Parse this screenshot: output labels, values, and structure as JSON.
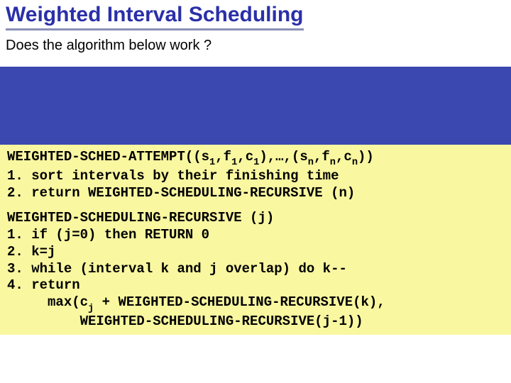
{
  "colors": {
    "header_bg": "#ffffff",
    "title_text": "#2a2fa8",
    "title_underline": "#8a8fb5",
    "subtitle_text": "#000000",
    "mid_bg": "#3a48b0",
    "code_bg": "#f9f7a0",
    "code_text": "#000000"
  },
  "text": {
    "title": "Weighted Interval Scheduling",
    "subtitle": "Does the algorithm below work ?"
  },
  "code": {
    "block1": {
      "l1a": "WEIGHTED-SCHED-ATTEMPT((s",
      "l1b": ",f",
      "l1c": ",c",
      "l1d": "),…,(s",
      "l1e": ",f",
      "l1f": ",c",
      "l1g": "))",
      "sub_1a": "1",
      "sub_1b": "1",
      "sub_1c": "1",
      "sub_na": "n",
      "sub_nb": "n",
      "sub_nc": "n",
      "l2": "1. sort intervals by their finishing time",
      "l3": "2. return WEIGHTED-SCHEDULING-RECURSIVE (n)"
    },
    "block2": {
      "l1": "WEIGHTED-SCHEDULING-RECURSIVE (j)",
      "l2": "1. if (j=0) then RETURN 0",
      "l3": "2. k=j",
      "l4": "3. while (interval k and j overlap) do k--",
      "l5": "4. return",
      "l6a": "     max(c",
      "l6b": " + WEIGHTED-SCHEDULING-RECURSIVE(k),",
      "sub_j": "j",
      "l7": "         WEIGHTED-SCHEDULING-RECURSIVE(j-1))"
    }
  }
}
